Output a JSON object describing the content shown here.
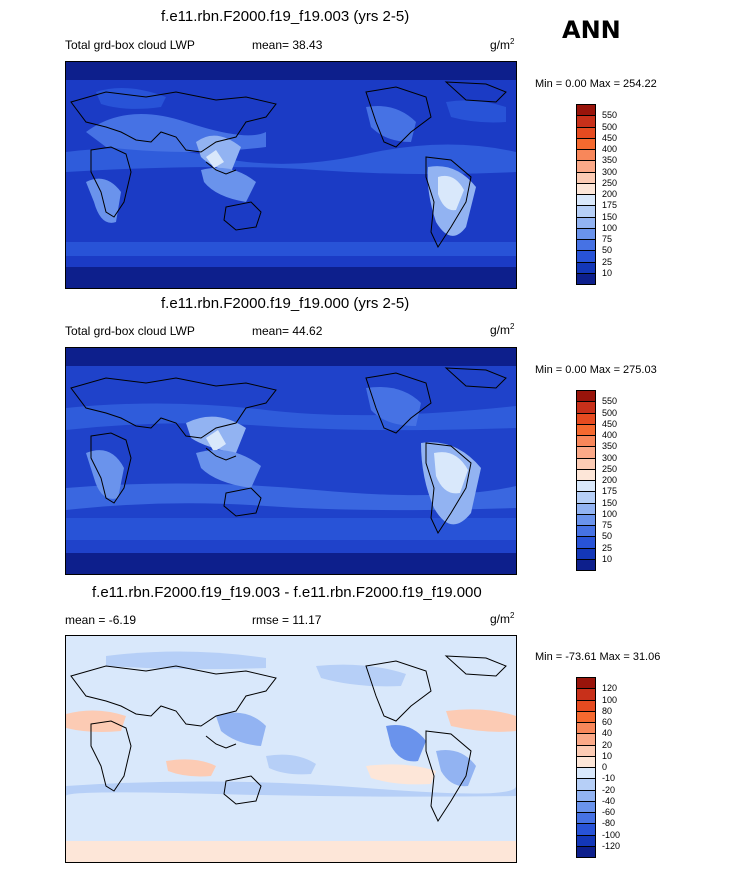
{
  "season": "ANN",
  "units_base": "g/m",
  "units_exp": "2",
  "panels": [
    {
      "title": "f.e11.rbn.F2000.f19_f19.003 (yrs 2-5)",
      "left_label": "Total grd-box cloud LWP",
      "stat": "mean=  38.43",
      "minmax": "Min =   0.00 Max = 254.22",
      "levels": [
        "550",
        "500",
        "450",
        "400",
        "350",
        "300",
        "250",
        "200",
        "175",
        "150",
        "100",
        "75",
        "50",
        "25",
        "10"
      ],
      "colors": [
        "#99140b",
        "#c8301a",
        "#e64b20",
        "#f5692f",
        "#f8875a",
        "#fba988",
        "#fccbb4",
        "#fde6d8",
        "#d9e8fb",
        "#b6cff7",
        "#92b3f2",
        "#6a93ec",
        "#4672e4",
        "#2853d7",
        "#1337b8",
        "#0d1f8c"
      ]
    },
    {
      "title": "f.e11.rbn.F2000.f19_f19.000 (yrs 2-5)",
      "left_label": "Total grd-box cloud LWP",
      "stat": "mean=  44.62",
      "minmax": "Min =   0.00 Max = 275.03",
      "levels": [
        "550",
        "500",
        "450",
        "400",
        "350",
        "300",
        "250",
        "200",
        "175",
        "150",
        "100",
        "75",
        "50",
        "25",
        "10"
      ],
      "colors": [
        "#99140b",
        "#c8301a",
        "#e64b20",
        "#f5692f",
        "#f8875a",
        "#fba988",
        "#fccbb4",
        "#fde6d8",
        "#d9e8fb",
        "#b6cff7",
        "#92b3f2",
        "#6a93ec",
        "#4672e4",
        "#2853d7",
        "#1337b8",
        "#0d1f8c"
      ]
    },
    {
      "title": "f.e11.rbn.F2000.f19_f19.003 - f.e11.rbn.F2000.f19_f19.000",
      "left_label": "mean =  -6.19",
      "stat": "rmse =  11.17",
      "minmax": "Min = -73.61 Max =  31.06",
      "levels": [
        "120",
        "100",
        "80",
        "60",
        "40",
        "20",
        "10",
        "0",
        "-10",
        "-20",
        "-40",
        "-60",
        "-80",
        "-100",
        "-120"
      ],
      "colors": [
        "#99140b",
        "#c8301a",
        "#e64b20",
        "#f5692f",
        "#f8875a",
        "#fba988",
        "#fccbb4",
        "#fde6d8",
        "#d9e8fb",
        "#b6cff7",
        "#92b3f2",
        "#6a93ec",
        "#4672e4",
        "#2853d7",
        "#1337b8",
        "#0d1f8c"
      ]
    }
  ]
}
